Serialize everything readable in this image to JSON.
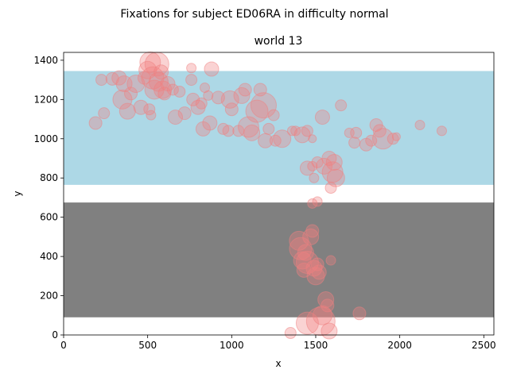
{
  "chart_data": {
    "type": "scatter",
    "suptitle": "Fixations for subject ED06RA in difficulty normal",
    "title": "world 13",
    "xlabel": "x",
    "ylabel": "y",
    "xlim": [
      0,
      2560
    ],
    "ylim": [
      0,
      1440
    ],
    "xticks": [
      0,
      500,
      1000,
      1500,
      2000,
      2500
    ],
    "yticks": [
      0,
      200,
      400,
      600,
      800,
      1000,
      1200,
      1400
    ],
    "grid": false,
    "regions": [
      {
        "y0": 765,
        "y1": 1345,
        "color": "#add8e6"
      },
      {
        "y0": 90,
        "y1": 675,
        "color": "#808080"
      }
    ],
    "marker_color": "#f08080",
    "marker_alpha": 0.35,
    "points": [
      {
        "x": 190,
        "y": 1080,
        "s": 8
      },
      {
        "x": 225,
        "y": 1300,
        "s": 7
      },
      {
        "x": 240,
        "y": 1130,
        "s": 7
      },
      {
        "x": 290,
        "y": 1305,
        "s": 8
      },
      {
        "x": 330,
        "y": 1310,
        "s": 9
      },
      {
        "x": 350,
        "y": 1200,
        "s": 12
      },
      {
        "x": 360,
        "y": 1280,
        "s": 10
      },
      {
        "x": 380,
        "y": 1140,
        "s": 10
      },
      {
        "x": 400,
        "y": 1230,
        "s": 8
      },
      {
        "x": 430,
        "y": 1280,
        "s": 11
      },
      {
        "x": 460,
        "y": 1160,
        "s": 9
      },
      {
        "x": 480,
        "y": 1310,
        "s": 8
      },
      {
        "x": 500,
        "y": 1350,
        "s": 11
      },
      {
        "x": 510,
        "y": 1150,
        "s": 7
      },
      {
        "x": 515,
        "y": 1390,
        "s": 13
      },
      {
        "x": 520,
        "y": 1120,
        "s": 6
      },
      {
        "x": 530,
        "y": 1310,
        "s": 14
      },
      {
        "x": 540,
        "y": 1250,
        "s": 12
      },
      {
        "x": 555,
        "y": 1380,
        "s": 15
      },
      {
        "x": 565,
        "y": 1290,
        "s": 12
      },
      {
        "x": 580,
        "y": 1340,
        "s": 9
      },
      {
        "x": 590,
        "y": 1250,
        "s": 11
      },
      {
        "x": 600,
        "y": 1230,
        "s": 8
      },
      {
        "x": 620,
        "y": 1280,
        "s": 9
      },
      {
        "x": 650,
        "y": 1250,
        "s": 7
      },
      {
        "x": 665,
        "y": 1110,
        "s": 9
      },
      {
        "x": 690,
        "y": 1240,
        "s": 7
      },
      {
        "x": 720,
        "y": 1130,
        "s": 8
      },
      {
        "x": 760,
        "y": 1360,
        "s": 6
      },
      {
        "x": 760,
        "y": 1300,
        "s": 7
      },
      {
        "x": 770,
        "y": 1200,
        "s": 8
      },
      {
        "x": 800,
        "y": 1160,
        "s": 9
      },
      {
        "x": 820,
        "y": 1180,
        "s": 7
      },
      {
        "x": 830,
        "y": 1050,
        "s": 9
      },
      {
        "x": 840,
        "y": 1260,
        "s": 6
      },
      {
        "x": 860,
        "y": 1220,
        "s": 6
      },
      {
        "x": 870,
        "y": 1080,
        "s": 9
      },
      {
        "x": 880,
        "y": 1355,
        "s": 9
      },
      {
        "x": 920,
        "y": 1210,
        "s": 8
      },
      {
        "x": 950,
        "y": 1050,
        "s": 7
      },
      {
        "x": 980,
        "y": 1040,
        "s": 7
      },
      {
        "x": 990,
        "y": 1200,
        "s": 11
      },
      {
        "x": 1000,
        "y": 1150,
        "s": 8
      },
      {
        "x": 1040,
        "y": 1040,
        "s": 7
      },
      {
        "x": 1060,
        "y": 1220,
        "s": 10
      },
      {
        "x": 1080,
        "y": 1250,
        "s": 8
      },
      {
        "x": 1100,
        "y": 1060,
        "s": 13
      },
      {
        "x": 1120,
        "y": 1030,
        "s": 10
      },
      {
        "x": 1150,
        "y": 1140,
        "s": 14
      },
      {
        "x": 1170,
        "y": 1250,
        "s": 8
      },
      {
        "x": 1190,
        "y": 1170,
        "s": 16
      },
      {
        "x": 1200,
        "y": 990,
        "s": 9
      },
      {
        "x": 1220,
        "y": 1050,
        "s": 7
      },
      {
        "x": 1250,
        "y": 1120,
        "s": 7
      },
      {
        "x": 1260,
        "y": 990,
        "s": 7
      },
      {
        "x": 1300,
        "y": 1000,
        "s": 11
      },
      {
        "x": 1360,
        "y": 1040,
        "s": 6
      },
      {
        "x": 1380,
        "y": 1040,
        "s": 6
      },
      {
        "x": 1420,
        "y": 1020,
        "s": 10
      },
      {
        "x": 1450,
        "y": 1040,
        "s": 7
      },
      {
        "x": 1480,
        "y": 1000,
        "s": 5
      },
      {
        "x": 1540,
        "y": 1110,
        "s": 9
      },
      {
        "x": 1650,
        "y": 1170,
        "s": 7
      },
      {
        "x": 1700,
        "y": 1030,
        "s": 6
      },
      {
        "x": 1740,
        "y": 1030,
        "s": 7
      },
      {
        "x": 1730,
        "y": 980,
        "s": 7
      },
      {
        "x": 1800,
        "y": 970,
        "s": 8
      },
      {
        "x": 1830,
        "y": 990,
        "s": 7
      },
      {
        "x": 1860,
        "y": 1070,
        "s": 8
      },
      {
        "x": 1880,
        "y": 1040,
        "s": 8
      },
      {
        "x": 1900,
        "y": 1000,
        "s": 13
      },
      {
        "x": 1960,
        "y": 1000,
        "s": 7
      },
      {
        "x": 1980,
        "y": 1010,
        "s": 5
      },
      {
        "x": 2120,
        "y": 1070,
        "s": 6
      },
      {
        "x": 2250,
        "y": 1040,
        "s": 6
      },
      {
        "x": 1450,
        "y": 850,
        "s": 9
      },
      {
        "x": 1480,
        "y": 860,
        "s": 6
      },
      {
        "x": 1490,
        "y": 800,
        "s": 6
      },
      {
        "x": 1510,
        "y": 880,
        "s": 7
      },
      {
        "x": 1550,
        "y": 860,
        "s": 10
      },
      {
        "x": 1580,
        "y": 900,
        "s": 9
      },
      {
        "x": 1590,
        "y": 750,
        "s": 7
      },
      {
        "x": 1600,
        "y": 830,
        "s": 13
      },
      {
        "x": 1610,
        "y": 880,
        "s": 10
      },
      {
        "x": 1620,
        "y": 800,
        "s": 11
      },
      {
        "x": 1480,
        "y": 670,
        "s": 6
      },
      {
        "x": 1510,
        "y": 680,
        "s": 6
      },
      {
        "x": 1400,
        "y": 480,
        "s": 12
      },
      {
        "x": 1410,
        "y": 440,
        "s": 14
      },
      {
        "x": 1420,
        "y": 380,
        "s": 11
      },
      {
        "x": 1430,
        "y": 330,
        "s": 9
      },
      {
        "x": 1440,
        "y": 420,
        "s": 10
      },
      {
        "x": 1450,
        "y": 370,
        "s": 14
      },
      {
        "x": 1470,
        "y": 500,
        "s": 10
      },
      {
        "x": 1480,
        "y": 530,
        "s": 8
      },
      {
        "x": 1490,
        "y": 340,
        "s": 10
      },
      {
        "x": 1500,
        "y": 300,
        "s": 11
      },
      {
        "x": 1510,
        "y": 360,
        "s": 8
      },
      {
        "x": 1520,
        "y": 320,
        "s": 9
      },
      {
        "x": 1540,
        "y": 100,
        "s": 12
      },
      {
        "x": 1560,
        "y": 180,
        "s": 10
      },
      {
        "x": 1570,
        "y": 150,
        "s": 8
      },
      {
        "x": 1590,
        "y": 380,
        "s": 6
      },
      {
        "x": 1350,
        "y": 10,
        "s": 7
      },
      {
        "x": 1450,
        "y": 60,
        "s": 14
      },
      {
        "x": 1530,
        "y": 70,
        "s": 18
      },
      {
        "x": 1580,
        "y": 20,
        "s": 10
      },
      {
        "x": 1760,
        "y": 110,
        "s": 8
      }
    ]
  }
}
